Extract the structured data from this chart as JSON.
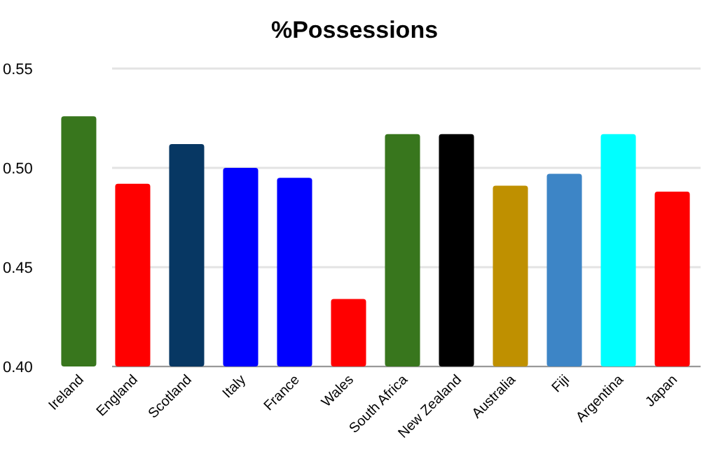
{
  "chart_data": {
    "type": "bar",
    "title": "%Possessions",
    "categories": [
      "Ireland",
      "England",
      "Scotland",
      "Italy",
      "France",
      "Wales",
      "South Africa",
      "New Zealand",
      "Australia",
      "Fiji",
      "Argentina",
      "Japan"
    ],
    "values": [
      0.526,
      0.492,
      0.512,
      0.5,
      0.495,
      0.434,
      0.517,
      0.517,
      0.491,
      0.497,
      0.517,
      0.488
    ],
    "colors": [
      "#38761d",
      "#ff0000",
      "#073763",
      "#0000ff",
      "#0000ff",
      "#ff0000",
      "#38761d",
      "#000000",
      "#bf9000",
      "#3d85c6",
      "#00ffff",
      "#ff0000"
    ],
    "ylim": [
      0.4,
      0.55
    ],
    "yticks": [
      {
        "value": 0.4,
        "label": "0.40"
      },
      {
        "value": 0.45,
        "label": "0.45"
      },
      {
        "value": 0.5,
        "label": "0.50"
      },
      {
        "value": 0.55,
        "label": "0.55"
      }
    ],
    "grid": "y"
  }
}
